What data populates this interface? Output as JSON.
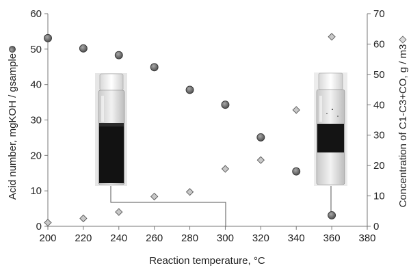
{
  "chart_data": {
    "type": "scatter",
    "xlabel": "Reaction temperature, °C",
    "ylabel_left": "Acid number, mgKOH / gsample",
    "ylabel_right": "Concentration of C1-C3+CO, g / m3",
    "xlim": [
      200,
      380
    ],
    "ylim_left": [
      0,
      60
    ],
    "ylim_right": [
      0,
      70
    ],
    "x_ticks": [
      200,
      220,
      240,
      260,
      280,
      300,
      320,
      340,
      360,
      380
    ],
    "y_left_ticks": [
      0,
      10,
      20,
      30,
      40,
      50,
      60
    ],
    "y_right_ticks": [
      0,
      10,
      20,
      30,
      40,
      50,
      60,
      70
    ],
    "grid": false,
    "series": [
      {
        "marker": "circle",
        "axis": "left",
        "color": "#6e6e6e",
        "x": [
          200,
          220,
          240,
          260,
          280,
          300,
          320,
          340,
          360
        ],
        "values": [
          53.1,
          50.2,
          48.3,
          44.9,
          38.5,
          34.3,
          25.1,
          15.5,
          3.1
        ]
      },
      {
        "marker": "diamond",
        "axis": "right",
        "color": "#c8c8c8",
        "x": [
          200,
          220,
          240,
          260,
          280,
          300,
          320,
          340,
          360
        ],
        "values": [
          1.2,
          2.6,
          4.7,
          9.8,
          11.3,
          18.9,
          21.8,
          38.3,
          62.4
        ]
      }
    ],
    "insets": [
      {
        "name": "dark-sample-vial",
        "pointer_to_x": 300
      },
      {
        "name": "light-sample-vial",
        "pointer_to_x": 360
      }
    ]
  }
}
